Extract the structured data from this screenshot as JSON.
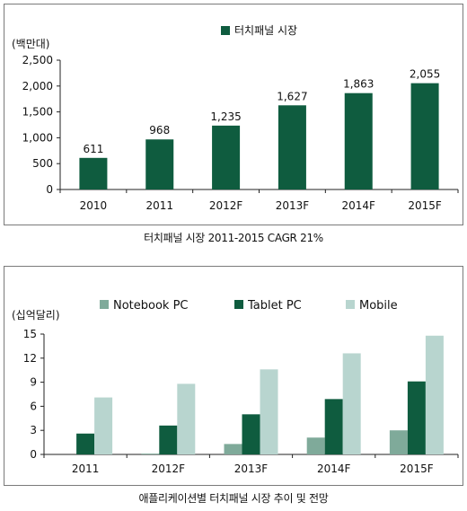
{
  "chart_data": [
    {
      "type": "bar",
      "ylabel": "(백만대)",
      "categories": [
        "2010",
        "2011",
        "2012F",
        "2013F",
        "2014F",
        "2015F"
      ],
      "series": [
        {
          "name": "터치패널 시장",
          "values": [
            611,
            968,
            1235,
            1627,
            1863,
            2055
          ]
        }
      ],
      "data_labels": [
        "611",
        "968",
        "1,235",
        "1,627",
        "1,863",
        "2,055"
      ],
      "yticks": [
        "0",
        "500",
        "1,000",
        "1,500",
        "2,000",
        "2,500"
      ],
      "ylim": [
        0,
        2500
      ],
      "legend": "top-center",
      "grid": false,
      "colors": [
        "#0f5c3f"
      ],
      "caption": "터치패널 시장 2011-2015 CAGR 21%"
    },
    {
      "type": "bar",
      "ylabel": "(십억달리)",
      "categories": [
        "2011",
        "2012F",
        "2013F",
        "2014F",
        "2015F"
      ],
      "series": [
        {
          "name": "Notebook PC",
          "values": [
            0,
            0.1,
            1.3,
            2.1,
            3.0
          ]
        },
        {
          "name": "Tablet PC",
          "values": [
            2.6,
            3.6,
            5.0,
            6.9,
            9.1
          ]
        },
        {
          "name": "Mobile",
          "values": [
            7.1,
            8.8,
            10.6,
            12.6,
            14.8
          ]
        }
      ],
      "yticks": [
        "0",
        "3",
        "6",
        "9",
        "12",
        "15"
      ],
      "ylim": [
        0,
        15
      ],
      "legend": "top-center",
      "grid": false,
      "colors": [
        "#7faa9a",
        "#0f5c3f",
        "#b8d5cf"
      ],
      "caption": "애플리케이션별 터치패널 시장 추이 및 전망"
    }
  ]
}
